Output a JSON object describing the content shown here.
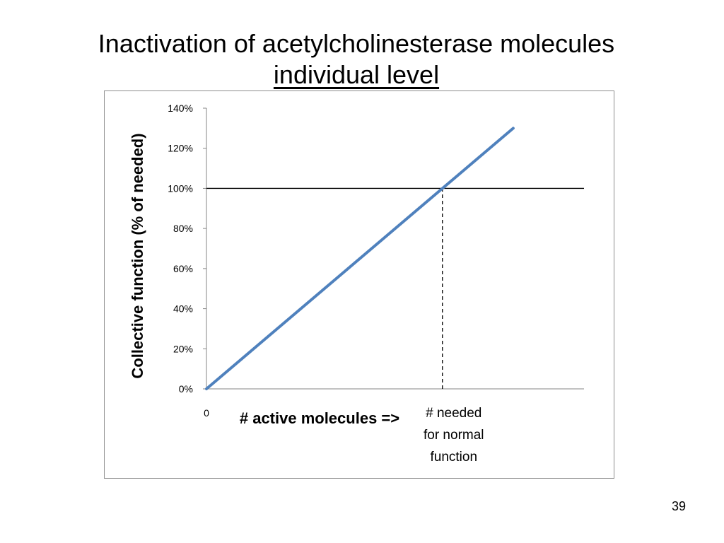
{
  "slide": {
    "title_line1": "Inactivation of acetylcholinesterase molecules",
    "title_line2": "individual level",
    "page_number": "39"
  },
  "chart_data": {
    "type": "line",
    "ylabel": "Collective function (% of needed)",
    "xlabel": "# active molecules =>",
    "x_tick_labels": [
      {
        "x": 0,
        "label": "0"
      },
      {
        "x": 1,
        "label": "# needed\nfor normal\nfunction"
      }
    ],
    "xlim": [
      0,
      1.6
    ],
    "ylim": [
      0,
      1.4
    ],
    "y_ticks": [
      0,
      0.2,
      0.4,
      0.6,
      0.8,
      1.0,
      1.2,
      1.4
    ],
    "y_tick_labels": [
      "0%",
      "20%",
      "40%",
      "60%",
      "80%",
      "100%",
      "120%",
      "140%"
    ],
    "series": [
      {
        "color": "#4f81bd",
        "x": [
          0,
          1.3
        ],
        "y": [
          0,
          1.3
        ]
      }
    ],
    "reference_lines": [
      {
        "orientation": "horizontal",
        "y": 1.0,
        "style": "solid",
        "color": "#000000"
      },
      {
        "orientation": "vertical",
        "x": 1.0,
        "y_from": 0,
        "y_to": 1.0,
        "style": "dashed",
        "color": "#000000"
      }
    ],
    "grid": false,
    "legend": "none"
  }
}
